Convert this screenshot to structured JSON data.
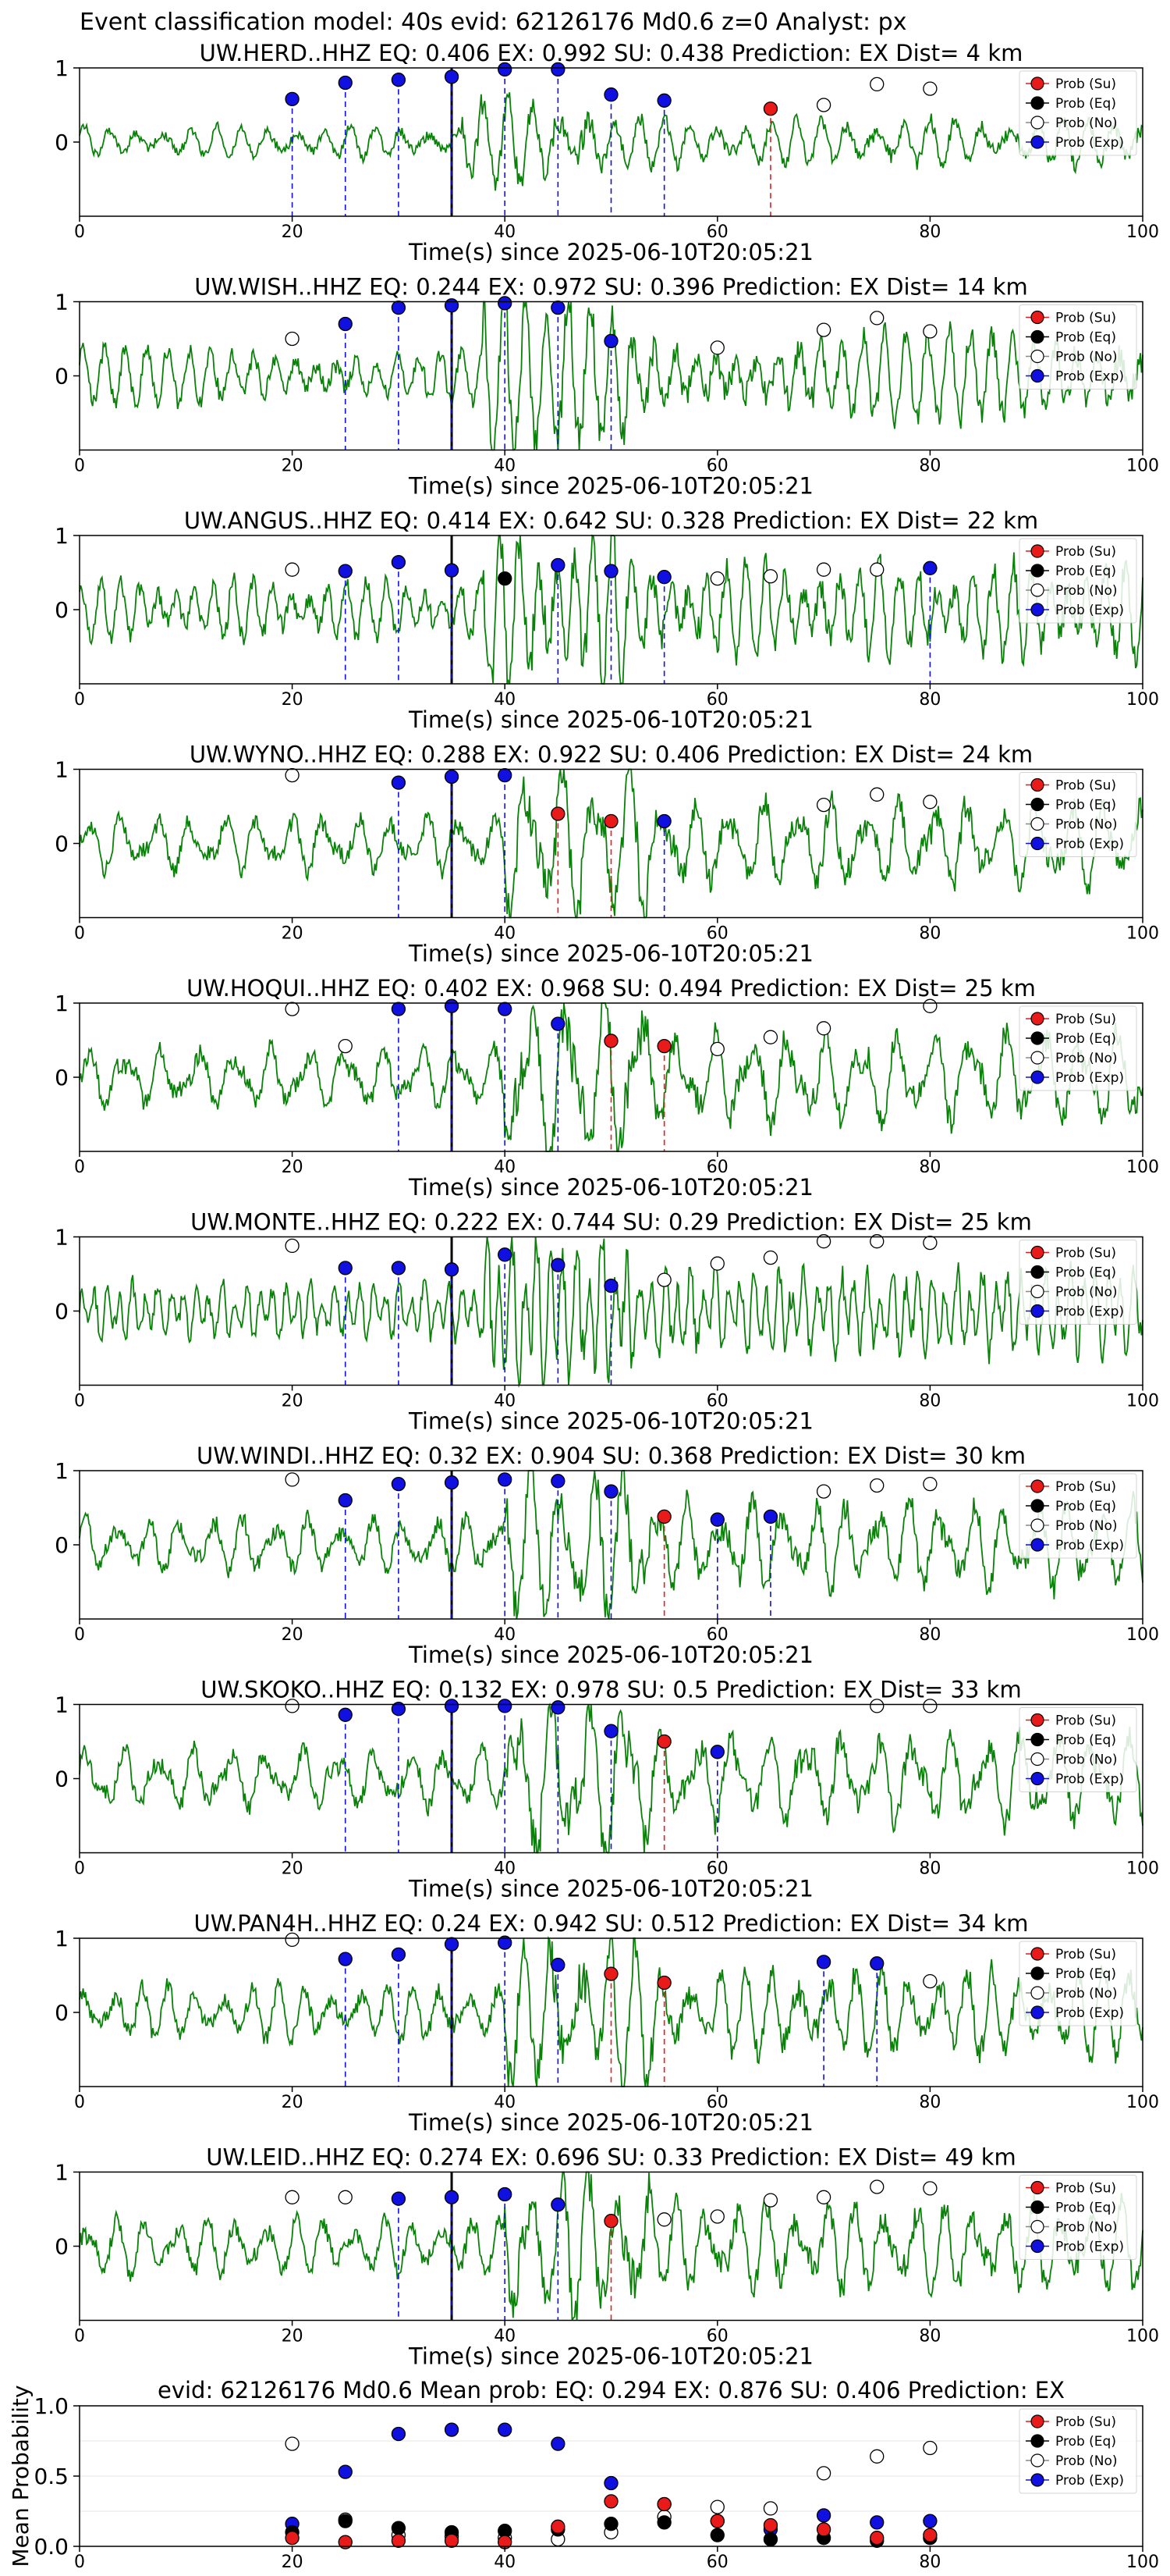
{
  "suptitle": "Event classification model: 40s evid: 62126176 Md0.6 z=0 Analyst: px",
  "colors": {
    "su": "#e81a1a",
    "eq": "#000000",
    "no": "#ffffff",
    "exp": "#1010e0",
    "wave": "#0a820a"
  },
  "legend_labels": [
    "Prob (Su)",
    "Prob (Eq)",
    "Prob (No)",
    "Prob (Exp)"
  ],
  "chart_data": [
    {
      "type": "line",
      "title": "UW.HERD..HHZ   EQ: 0.406  EX: 0.992  SU: 0.438   Prediction: EX    Dist= 4 km",
      "xlabel": "Time(s) since 2025-06-10T20:05:21",
      "xlim": [
        0,
        100
      ],
      "ylim": [
        -1,
        1
      ],
      "xticks": [
        "0",
        "20",
        "40",
        "60",
        "80",
        "100"
      ],
      "yticks": [
        "1",
        "0"
      ],
      "legend": "top-right",
      "origin_line": 35,
      "amplitude": 0.45,
      "onset": 36,
      "seed": 1,
      "period": 2.5,
      "points": {
        "exp": [
          [
            20,
            0.58
          ],
          [
            25,
            0.8
          ],
          [
            30,
            0.84
          ],
          [
            35,
            0.88
          ],
          [
            40,
            0.98
          ],
          [
            45,
            0.98
          ],
          [
            50,
            0.64
          ],
          [
            55,
            0.56
          ]
        ],
        "su": [
          [
            65,
            0.45
          ]
        ],
        "no": [
          [
            70,
            0.5
          ],
          [
            75,
            0.78
          ],
          [
            80,
            0.72
          ]
        ],
        "eq": []
      }
    },
    {
      "type": "line",
      "title": "UW.WISH..HHZ   EQ: 0.244  EX: 0.972  SU: 0.396   Prediction: EX    Dist= 14 km",
      "xlabel": "Time(s) since 2025-06-10T20:05:21",
      "xlim": [
        0,
        100
      ],
      "ylim": [
        -1,
        1
      ],
      "xticks": [
        "0",
        "20",
        "40",
        "60",
        "80",
        "100"
      ],
      "yticks": [
        "1",
        "0"
      ],
      "legend": "top-right",
      "origin_line": 35,
      "amplitude": 0.8,
      "onset": 38,
      "seed": 2,
      "period": 2.0,
      "points": {
        "exp": [
          [
            25,
            0.7
          ],
          [
            30,
            0.92
          ],
          [
            35,
            0.95
          ],
          [
            40,
            0.98
          ],
          [
            45,
            0.92
          ],
          [
            50,
            0.47
          ]
        ],
        "su": [],
        "no": [
          [
            20,
            0.5
          ],
          [
            60,
            0.38
          ],
          [
            70,
            0.62
          ],
          [
            75,
            0.78
          ],
          [
            80,
            0.6
          ]
        ],
        "eq": []
      }
    },
    {
      "type": "line",
      "title": "UW.ANGUS..HHZ   EQ: 0.414  EX: 0.642  SU: 0.328   Prediction: EX    Dist= 22 km",
      "xlabel": "Time(s) since 2025-06-10T20:05:21",
      "xlim": [
        0,
        100
      ],
      "ylim": [
        -1,
        1
      ],
      "xticks": [
        "0",
        "20",
        "40",
        "60",
        "80",
        "100"
      ],
      "yticks": [
        "1",
        "0"
      ],
      "legend": "top-right",
      "origin_line": 35,
      "amplitude": 0.85,
      "onset": 38,
      "seed": 3,
      "period": 1.8,
      "points": {
        "exp": [
          [
            25,
            0.52
          ],
          [
            30,
            0.64
          ],
          [
            35,
            0.53
          ],
          [
            45,
            0.6
          ],
          [
            50,
            0.52
          ],
          [
            55,
            0.44
          ],
          [
            80,
            0.56
          ]
        ],
        "su": [],
        "no": [
          [
            20,
            0.54
          ],
          [
            60,
            0.42
          ],
          [
            65,
            0.45
          ],
          [
            70,
            0.54
          ],
          [
            75,
            0.54
          ]
        ],
        "eq": [
          [
            40,
            0.42
          ]
        ]
      }
    },
    {
      "type": "line",
      "title": "UW.WYNO..HHZ   EQ: 0.288  EX: 0.922  SU: 0.406   Prediction: EX    Dist= 24 km",
      "xlabel": "Time(s) since 2025-06-10T20:05:21",
      "xlim": [
        0,
        100
      ],
      "ylim": [
        -1,
        1
      ],
      "xticks": [
        "0",
        "20",
        "40",
        "60",
        "80",
        "100"
      ],
      "yticks": [
        "1",
        "0"
      ],
      "legend": "top-right",
      "origin_line": 35,
      "amplitude": 0.8,
      "onset": 40,
      "seed": 4,
      "period": 3.2,
      "points": {
        "exp": [
          [
            30,
            0.82
          ],
          [
            35,
            0.9
          ],
          [
            40,
            0.92
          ],
          [
            55,
            0.3
          ]
        ],
        "su": [
          [
            45,
            0.4
          ],
          [
            50,
            0.3
          ]
        ],
        "no": [
          [
            20,
            0.92
          ],
          [
            70,
            0.52
          ],
          [
            75,
            0.66
          ],
          [
            80,
            0.56
          ]
        ],
        "eq": []
      }
    },
    {
      "type": "line",
      "title": "UW.HOQUI..HHZ   EQ: 0.402  EX: 0.968  SU: 0.494   Prediction: EX    Dist= 25 km",
      "xlabel": "Time(s) since 2025-06-10T20:05:21",
      "xlim": [
        0,
        100
      ],
      "ylim": [
        -1,
        1
      ],
      "xticks": [
        "0",
        "20",
        "40",
        "60",
        "80",
        "100"
      ],
      "yticks": [
        "1",
        "0"
      ],
      "legend": "top-right",
      "origin_line": 35,
      "amplitude": 0.85,
      "onset": 40,
      "seed": 5,
      "period": 3.5,
      "points": {
        "exp": [
          [
            30,
            0.92
          ],
          [
            35,
            0.96
          ],
          [
            40,
            0.92
          ],
          [
            45,
            0.72
          ]
        ],
        "su": [
          [
            50,
            0.49
          ],
          [
            55,
            0.42
          ]
        ],
        "no": [
          [
            20,
            0.92
          ],
          [
            25,
            0.42
          ],
          [
            60,
            0.38
          ],
          [
            65,
            0.54
          ],
          [
            70,
            0.66
          ],
          [
            80,
            0.96
          ]
        ],
        "eq": []
      }
    },
    {
      "type": "line",
      "title": "UW.MONTE..HHZ   EQ: 0.222  EX: 0.744  SU: 0.29   Prediction: EX    Dist= 25 km",
      "xlabel": "Time(s) since 2025-06-10T20:05:21",
      "xlim": [
        0,
        100
      ],
      "ylim": [
        -1,
        1
      ],
      "xticks": [
        "0",
        "20",
        "40",
        "60",
        "80",
        "100"
      ],
      "yticks": [
        "1",
        "0"
      ],
      "legend": "top-right",
      "origin_line": 35,
      "amplitude": 0.8,
      "onset": 38,
      "seed": 6,
      "period": 1.2,
      "points": {
        "exp": [
          [
            25,
            0.58
          ],
          [
            30,
            0.58
          ],
          [
            35,
            0.56
          ],
          [
            40,
            0.76
          ],
          [
            45,
            0.62
          ],
          [
            50,
            0.34
          ]
        ],
        "su": [],
        "no": [
          [
            20,
            0.88
          ],
          [
            55,
            0.42
          ],
          [
            60,
            0.64
          ],
          [
            65,
            0.72
          ],
          [
            70,
            0.94
          ],
          [
            75,
            0.94
          ],
          [
            80,
            0.92
          ]
        ],
        "eq": []
      }
    },
    {
      "type": "line",
      "title": "UW.WINDI..HHZ   EQ: 0.32  EX: 0.904  SU: 0.368   Prediction: EX    Dist= 30 km",
      "xlabel": "Time(s) since 2025-06-10T20:05:21",
      "xlim": [
        0,
        100
      ],
      "ylim": [
        -1,
        1
      ],
      "xticks": [
        "0",
        "20",
        "40",
        "60",
        "80",
        "100"
      ],
      "yticks": [
        "1",
        "0"
      ],
      "legend": "top-right",
      "origin_line": 35,
      "amplitude": 0.8,
      "onset": 40,
      "seed": 7,
      "period": 3.0,
      "points": {
        "exp": [
          [
            25,
            0.6
          ],
          [
            30,
            0.82
          ],
          [
            35,
            0.84
          ],
          [
            40,
            0.88
          ],
          [
            45,
            0.86
          ],
          [
            50,
            0.72
          ],
          [
            60,
            0.34
          ],
          [
            65,
            0.38
          ]
        ],
        "su": [
          [
            55,
            0.38
          ]
        ],
        "no": [
          [
            20,
            0.88
          ],
          [
            70,
            0.72
          ],
          [
            75,
            0.8
          ],
          [
            80,
            0.82
          ]
        ],
        "eq": []
      }
    },
    {
      "type": "line",
      "title": "UW.SKOKO..HHZ   EQ: 0.132  EX: 0.978  SU: 0.5   Prediction: EX    Dist= 33 km",
      "xlabel": "Time(s) since 2025-06-10T20:05:21",
      "xlim": [
        0,
        100
      ],
      "ylim": [
        -1,
        1
      ],
      "xticks": [
        "0",
        "20",
        "40",
        "60",
        "80",
        "100"
      ],
      "yticks": [
        "1",
        "0"
      ],
      "legend": "top-right",
      "origin_line": 35,
      "amplitude": 0.85,
      "onset": 40,
      "seed": 8,
      "period": 3.4,
      "points": {
        "exp": [
          [
            25,
            0.86
          ],
          [
            30,
            0.94
          ],
          [
            35,
            0.98
          ],
          [
            40,
            0.98
          ],
          [
            45,
            0.96
          ],
          [
            50,
            0.64
          ],
          [
            60,
            0.36
          ]
        ],
        "su": [
          [
            55,
            0.5
          ]
        ],
        "no": [
          [
            20,
            0.98
          ],
          [
            75,
            0.98
          ],
          [
            80,
            0.98
          ]
        ],
        "eq": []
      }
    },
    {
      "type": "line",
      "title": "UW.PAN4H..HHZ   EQ: 0.24  EX: 0.942  SU: 0.512   Prediction: EX    Dist= 34 km",
      "xlabel": "Time(s) since 2025-06-10T20:05:21",
      "xlim": [
        0,
        100
      ],
      "ylim": [
        -1,
        1
      ],
      "xticks": [
        "0",
        "20",
        "40",
        "60",
        "80",
        "100"
      ],
      "yticks": [
        "1",
        "0"
      ],
      "legend": "top-right",
      "origin_line": 35,
      "amplitude": 0.8,
      "onset": 40,
      "seed": 9,
      "period": 2.6,
      "points": {
        "exp": [
          [
            25,
            0.72
          ],
          [
            30,
            0.78
          ],
          [
            35,
            0.92
          ],
          [
            40,
            0.94
          ],
          [
            45,
            0.64
          ],
          [
            70,
            0.68
          ],
          [
            75,
            0.66
          ]
        ],
        "su": [
          [
            50,
            0.52
          ],
          [
            55,
            0.4
          ]
        ],
        "no": [
          [
            20,
            0.98
          ],
          [
            80,
            0.42
          ]
        ],
        "eq": []
      }
    },
    {
      "type": "line",
      "title": "UW.LEID..HHZ   EQ: 0.274  EX: 0.696  SU: 0.33   Prediction: EX    Dist= 49 km",
      "xlabel": "Time(s) since 2025-06-10T20:05:21",
      "xlim": [
        0,
        100
      ],
      "ylim": [
        -1,
        1
      ],
      "xticks": [
        "0",
        "20",
        "40",
        "60",
        "80",
        "100"
      ],
      "yticks": [
        "1",
        "0"
      ],
      "legend": "top-right",
      "origin_line": 35,
      "amplitude": 0.8,
      "onset": 40,
      "seed": 10,
      "period": 2.8,
      "points": {
        "exp": [
          [
            30,
            0.64
          ],
          [
            35,
            0.66
          ],
          [
            40,
            0.7
          ],
          [
            45,
            0.56
          ]
        ],
        "su": [
          [
            50,
            0.34
          ]
        ],
        "no": [
          [
            20,
            0.66
          ],
          [
            25,
            0.66
          ],
          [
            55,
            0.36
          ],
          [
            60,
            0.4
          ],
          [
            65,
            0.62
          ],
          [
            70,
            0.66
          ],
          [
            75,
            0.8
          ],
          [
            80,
            0.78
          ]
        ],
        "eq": []
      }
    },
    {
      "type": "scatter",
      "title": "evid: 62126176  Md0.6   Mean prob:   EQ: 0.294  EX: 0.876  SU: 0.406   Prediction: EX",
      "xlabel": "",
      "ylabel": "Mean Probability",
      "xlim": [
        0,
        100
      ],
      "ylim": [
        0,
        1
      ],
      "xticks": [
        "0",
        "20",
        "40",
        "60",
        "80",
        "100"
      ],
      "yticks": [
        "1.0",
        "0.5",
        "0.0"
      ],
      "legend": "top-right",
      "x": [
        20,
        25,
        30,
        35,
        40,
        45,
        50,
        55,
        60,
        65,
        70,
        75,
        80
      ],
      "series": [
        {
          "key": "exp",
          "name": "Prob (Exp)",
          "values": [
            0.16,
            0.53,
            0.8,
            0.83,
            0.83,
            0.73,
            0.45,
            0.3,
            0.18,
            0.12,
            0.22,
            0.17,
            0.18
          ]
        },
        {
          "key": "no",
          "name": "Prob (No)",
          "values": [
            0.73,
            0.19,
            0.08,
            0.07,
            0.06,
            0.05,
            0.1,
            0.21,
            0.28,
            0.27,
            0.52,
            0.64,
            0.7
          ]
        },
        {
          "key": "eq",
          "name": "Prob (Eq)",
          "values": [
            0.1,
            0.18,
            0.13,
            0.1,
            0.11,
            0.12,
            0.16,
            0.17,
            0.08,
            0.05,
            0.06,
            0.04,
            0.06
          ]
        },
        {
          "key": "su",
          "name": "Prob (Su)",
          "values": [
            0.06,
            0.03,
            0.04,
            0.04,
            0.03,
            0.14,
            0.32,
            0.3,
            0.18,
            0.15,
            0.12,
            0.06,
            0.08
          ]
        }
      ]
    }
  ]
}
